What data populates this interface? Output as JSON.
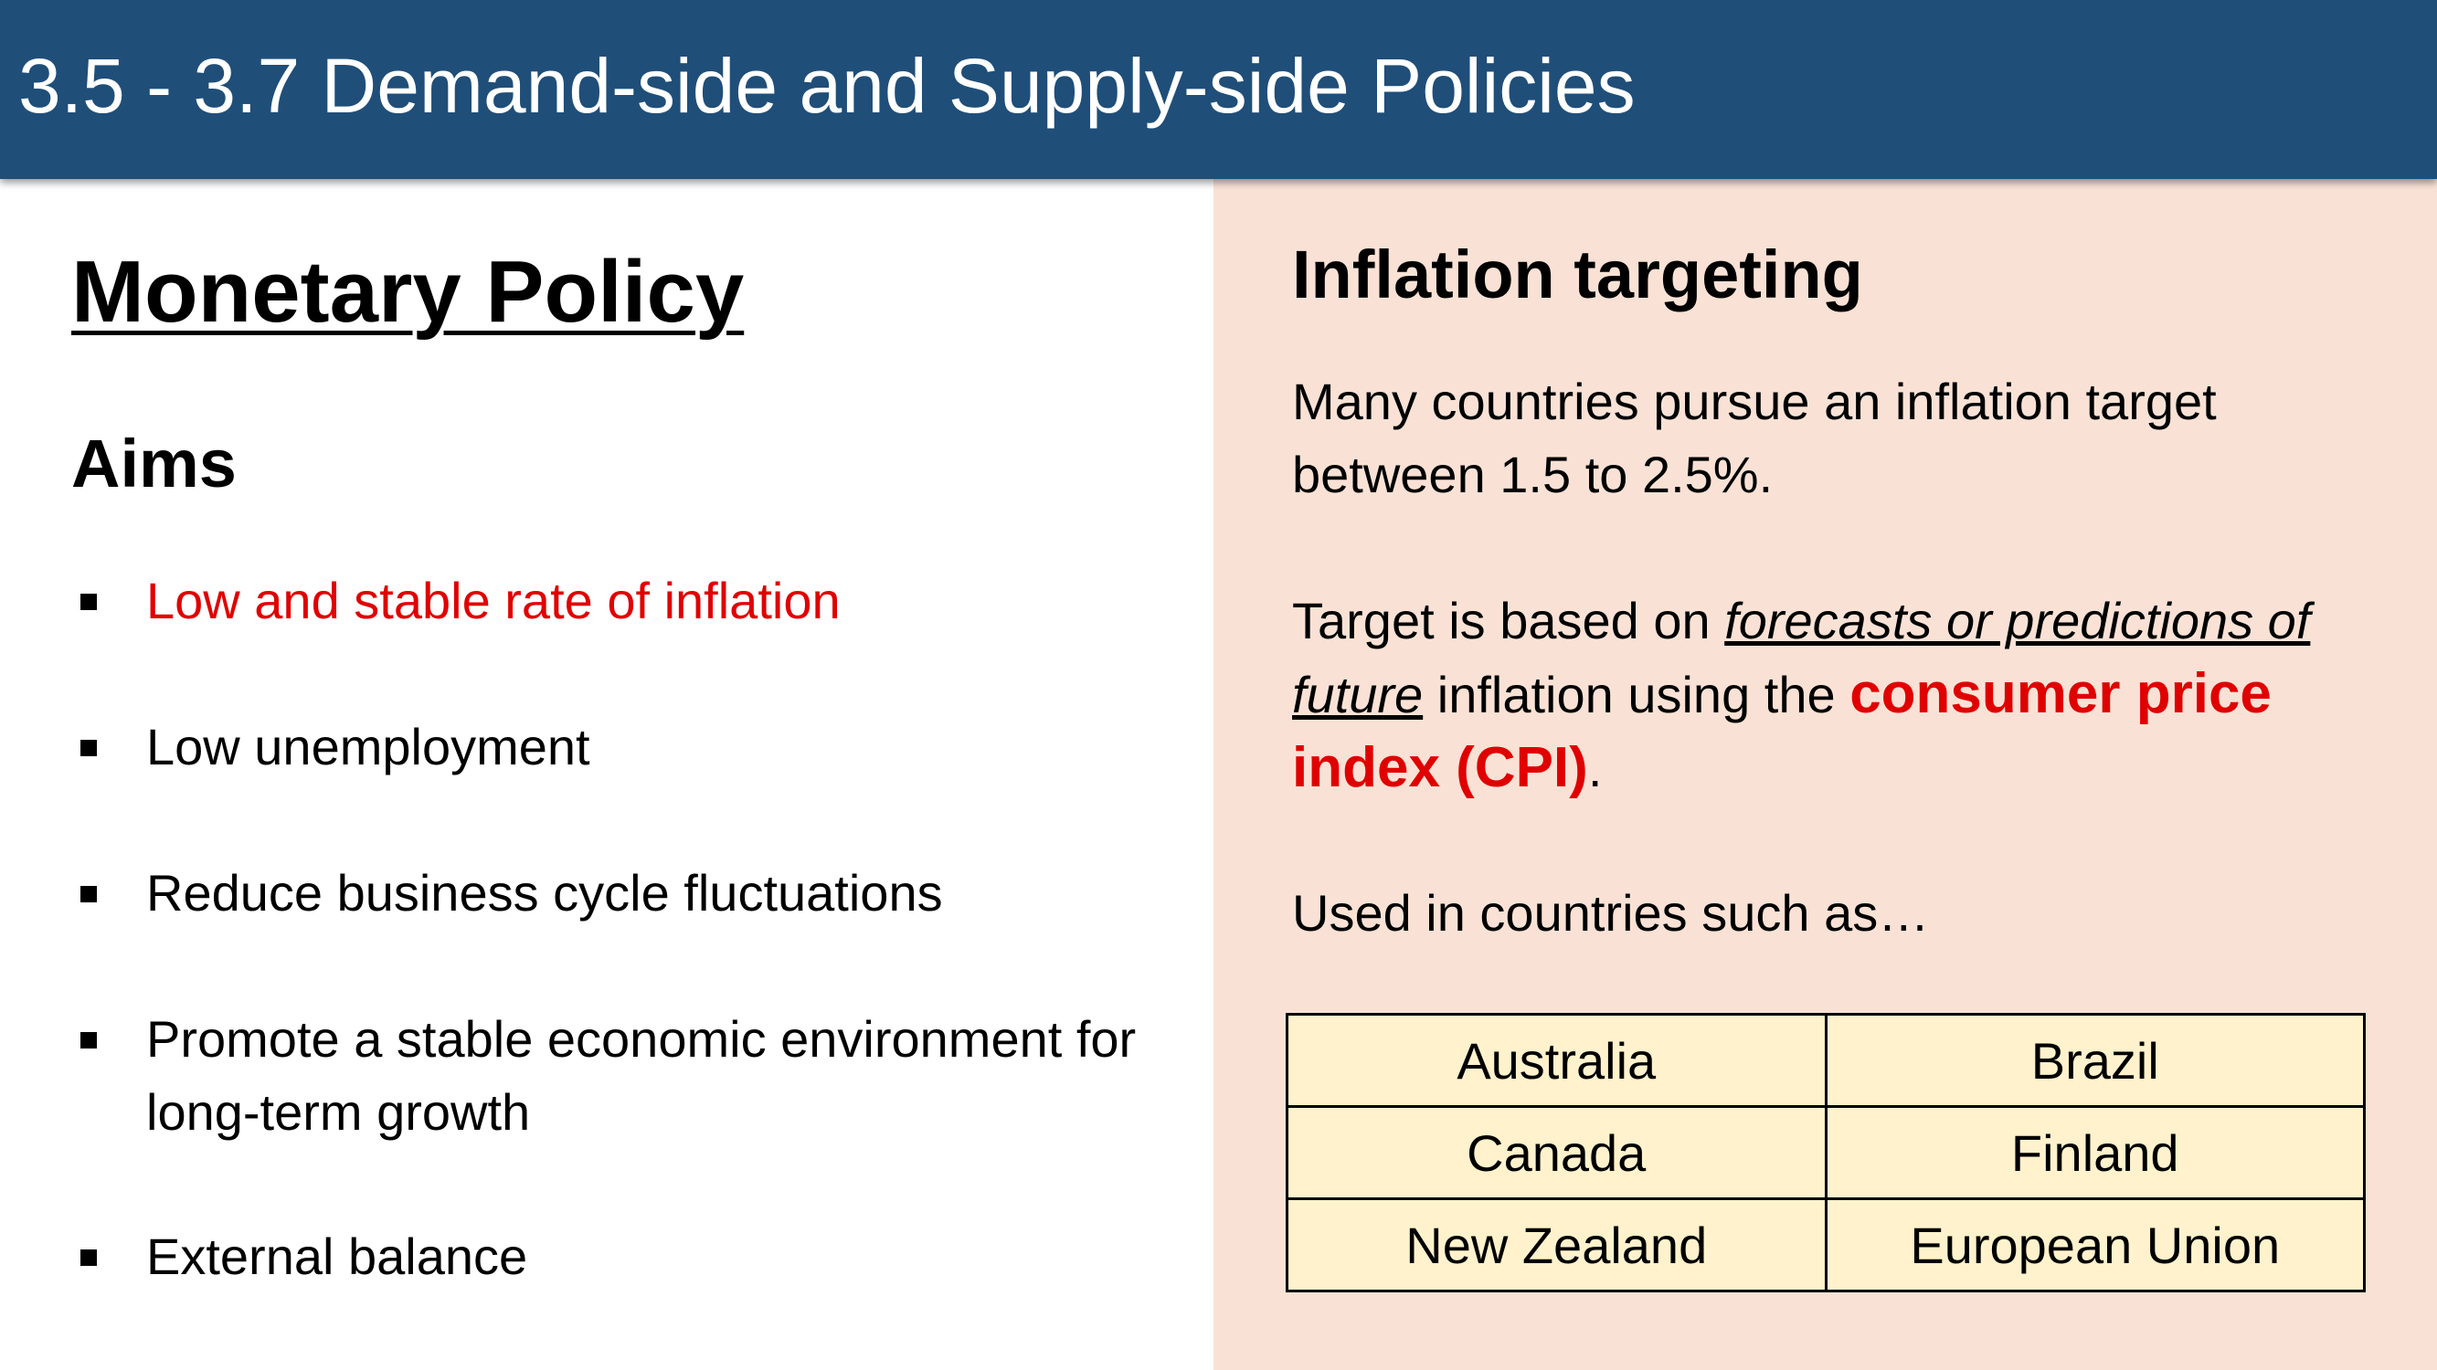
{
  "header": {
    "title": "3.5 - 3.7 Demand-side and Supply-side Policies"
  },
  "left": {
    "heading": "Monetary Policy",
    "subheading": "Aims",
    "aims": [
      "Low and stable rate of inflation",
      "Low unemployment",
      "Reduce business cycle fluctuations",
      "Promote a stable economic environment for long-term growth",
      "External balance"
    ]
  },
  "right": {
    "heading": "Inflation targeting",
    "paragraph1": "Many countries pursue an inflation target between 1.5 to 2.5%.",
    "paragraph2": [
      "Target is based on ",
      "forecasts or predictions of future",
      " inflation using the ",
      "consumer price index (CPI)",
      "."
    ],
    "paragraph3": "Used in countries such as…",
    "table": {
      "rows": [
        [
          "Australia",
          "Brazil"
        ],
        [
          "Canada",
          "Finland"
        ],
        [
          "New Zealand",
          "European Union"
        ]
      ]
    }
  }
}
